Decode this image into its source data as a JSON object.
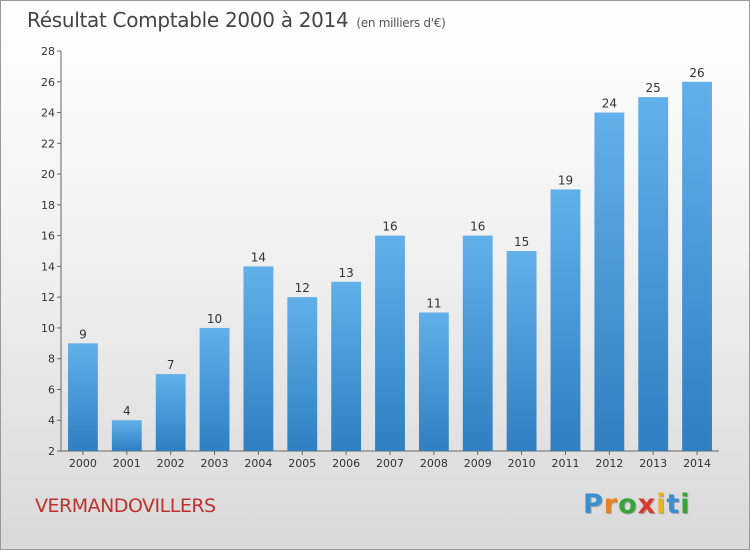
{
  "header": {
    "title": "Résultat Comptable 2000 à 2014",
    "unit": "(en milliers d'€)"
  },
  "footer": {
    "commune": "VERMANDOVILLERS",
    "logo_letters": [
      "P",
      "r",
      "o",
      "x",
      "i",
      "t",
      "i"
    ],
    "logo_colors": [
      "#3a8fd1",
      "#e8821e",
      "#3aa33a",
      "#d63b2f",
      "#e8b41e",
      "#3a8fd1",
      "#3aa33a"
    ]
  },
  "colors": {
    "bar_light": "#62b0ea",
    "bar_dark": "#2f7fc1",
    "axis": "#666666",
    "title": "#444444",
    "commune": "#c0302e"
  },
  "chart_data": {
    "type": "bar",
    "title": "Résultat Comptable 2000 à 2014",
    "subtitle": "(en milliers d'€)",
    "xlabel": "",
    "ylabel": "",
    "categories": [
      "2000",
      "2001",
      "2002",
      "2003",
      "2004",
      "2005",
      "2006",
      "2007",
      "2008",
      "2009",
      "2010",
      "2011",
      "2012",
      "2013",
      "2014"
    ],
    "values": [
      9,
      4,
      7,
      10,
      14,
      12,
      13,
      16,
      11,
      16,
      15,
      19,
      24,
      25,
      26
    ],
    "ylim": [
      2,
      28
    ],
    "yticks": [
      "2",
      "4",
      "6",
      "8",
      "10",
      "12",
      "14",
      "16",
      "18",
      "20",
      "22",
      "24",
      "26",
      "28"
    ],
    "grid": false,
    "legend": "none"
  }
}
